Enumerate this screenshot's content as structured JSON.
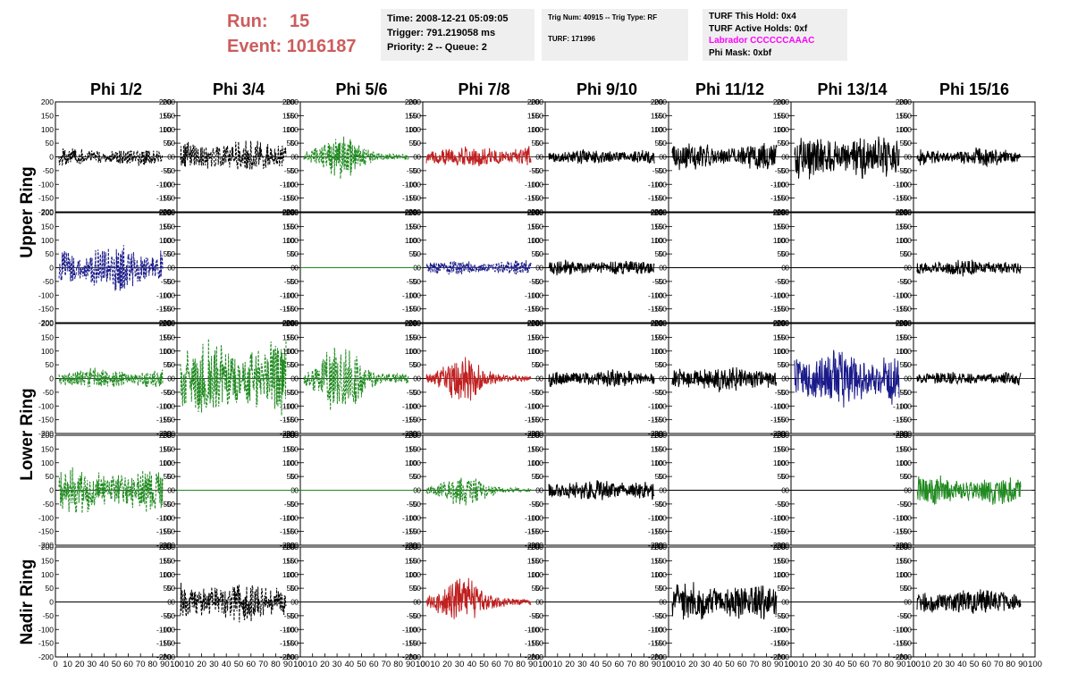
{
  "header": {
    "run_label": "Run:",
    "run_value": "15",
    "event_label": "Event:",
    "event_value": "1016187",
    "time": "Time: 2008-12-21 05:09:05",
    "trigger": "Trigger: 791.219058 ms",
    "priority": "Priority: 2 -- Queue: 2",
    "trig_num": "Trig Num: 40915 -- Trig Type: RF",
    "turf": "TURF: 171996",
    "turf_hold": "TURF This Hold: 0x4",
    "turf_active": "TURF Active Holds: 0xf",
    "labrador": "Labrador CCCCCCAAAC",
    "phi_mask": "Phi Mask: 0xbf"
  },
  "colors": {
    "header_red": "#cd5c5c",
    "labrador_magenta": "#ff00ff",
    "black": "#000000",
    "blue": "#1a1a8a",
    "green": "#1f8a1f",
    "red": "#c02020"
  },
  "chart_data": {
    "type": "line",
    "columns": [
      "Phi 1/2",
      "Phi 3/4",
      "Phi 5/6",
      "Phi 7/8",
      "Phi 9/10",
      "Phi 11/12",
      "Phi 13/14",
      "Phi 15/16"
    ],
    "row_labels": [
      {
        "label": "Upper Ring",
        "rows": [
          0,
          1
        ]
      },
      {
        "label": "Lower Ring",
        "rows": [
          2,
          3
        ]
      },
      {
        "label": "Nadir Ring",
        "rows": [
          4
        ]
      }
    ],
    "ylim": [
      -200,
      200
    ],
    "yticks": [
      -200,
      -150,
      -100,
      -50,
      0,
      50,
      100,
      150,
      200
    ],
    "xlim": [
      0,
      100
    ],
    "xticks": [
      0,
      10,
      20,
      30,
      40,
      50,
      60,
      70,
      80,
      90,
      100
    ],
    "x_tick_text": "0 10 20 30 40 50 60 70 80 90 100",
    "panels": [
      [
        {
          "color": "black",
          "dashed": true,
          "amp": 30,
          "env": "flat",
          "seed": 1
        },
        {
          "color": "black",
          "dashed": true,
          "amp": 55,
          "env": "flat",
          "seed": 2
        },
        {
          "color": "green",
          "dashed": true,
          "amp": 80,
          "env": "burst",
          "seed": 3
        },
        {
          "color": "red",
          "dashed": false,
          "amp": 35,
          "env": "flat",
          "seed": 4
        },
        {
          "color": "black",
          "dashed": false,
          "amp": 25,
          "env": "flat",
          "seed": 5
        },
        {
          "color": "black",
          "dashed": false,
          "amp": 45,
          "env": "flat",
          "seed": 6
        },
        {
          "color": "black",
          "dashed": false,
          "amp": 75,
          "env": "flat",
          "seed": 7
        },
        {
          "color": "black",
          "dashed": false,
          "amp": 30,
          "env": "flat",
          "seed": 8
        }
      ],
      [
        {
          "color": "blue",
          "dashed": true,
          "amp": 75,
          "env": "flat",
          "seed": 9
        },
        {
          "color": "black",
          "dashed": false,
          "amp": 0,
          "env": "flat",
          "seed": 10
        },
        {
          "color": "green",
          "dashed": false,
          "amp": 0,
          "env": "flat",
          "seed": 11
        },
        {
          "color": "blue",
          "dashed": true,
          "amp": 25,
          "env": "flat",
          "seed": 12
        },
        {
          "color": "black",
          "dashed": false,
          "amp": 25,
          "env": "flat",
          "seed": 13
        },
        {
          "color": "black",
          "dashed": false,
          "amp": 0,
          "env": "flat",
          "seed": 14
        },
        {
          "color": "black",
          "dashed": false,
          "amp": 0,
          "env": "flat",
          "seed": 15
        },
        {
          "color": "black",
          "dashed": false,
          "amp": 28,
          "env": "flat",
          "seed": 16
        }
      ],
      [
        {
          "color": "green",
          "dashed": true,
          "amp": 35,
          "env": "flat",
          "seed": 17
        },
        {
          "color": "green",
          "dashed": true,
          "amp": 130,
          "env": "flat",
          "seed": 18
        },
        {
          "color": "green",
          "dashed": true,
          "amp": 130,
          "env": "burst",
          "seed": 19
        },
        {
          "color": "red",
          "dashed": false,
          "amp": 80,
          "env": "burst",
          "seed": 20
        },
        {
          "color": "black",
          "dashed": false,
          "amp": 30,
          "env": "flat",
          "seed": 21
        },
        {
          "color": "black",
          "dashed": false,
          "amp": 45,
          "env": "flat",
          "seed": 22
        },
        {
          "color": "blue",
          "dashed": false,
          "amp": 100,
          "env": "flat",
          "seed": 23
        },
        {
          "color": "black",
          "dashed": false,
          "amp": 22,
          "env": "flat",
          "seed": 24
        }
      ],
      [
        {
          "color": "green",
          "dashed": true,
          "amp": 75,
          "env": "flat",
          "seed": 25
        },
        {
          "color": "green",
          "dashed": false,
          "amp": 0,
          "env": "flat",
          "seed": 26
        },
        {
          "color": "green",
          "dashed": false,
          "amp": 0,
          "env": "flat",
          "seed": 27
        },
        {
          "color": "green",
          "dashed": true,
          "amp": 60,
          "env": "burst",
          "seed": 28
        },
        {
          "color": "black",
          "dashed": false,
          "amp": 35,
          "env": "flat",
          "seed": 29
        },
        {
          "color": "black",
          "dashed": false,
          "amp": 0,
          "env": "flat",
          "seed": 30
        },
        {
          "color": "black",
          "dashed": false,
          "amp": 0,
          "env": "flat",
          "seed": 31
        },
        {
          "color": "green",
          "dashed": false,
          "amp": 50,
          "env": "flat",
          "seed": 32
        }
      ],
      [
        {
          "color": "black",
          "dashed": false,
          "amp": 0,
          "env": "flat",
          "seed": 33
        },
        {
          "color": "black",
          "dashed": true,
          "amp": 70,
          "env": "flat",
          "seed": 34
        },
        {
          "color": "black",
          "dashed": false,
          "amp": 0,
          "env": "flat",
          "seed": 35
        },
        {
          "color": "red",
          "dashed": false,
          "amp": 90,
          "env": "burst",
          "seed": 36
        },
        {
          "color": "black",
          "dashed": false,
          "amp": 0,
          "env": "flat",
          "seed": 37
        },
        {
          "color": "black",
          "dashed": false,
          "amp": 65,
          "env": "flat",
          "seed": 38
        },
        {
          "color": "black",
          "dashed": false,
          "amp": 0,
          "env": "flat",
          "seed": 39
        },
        {
          "color": "black",
          "dashed": false,
          "amp": 45,
          "env": "flat",
          "seed": 40
        }
      ]
    ]
  }
}
